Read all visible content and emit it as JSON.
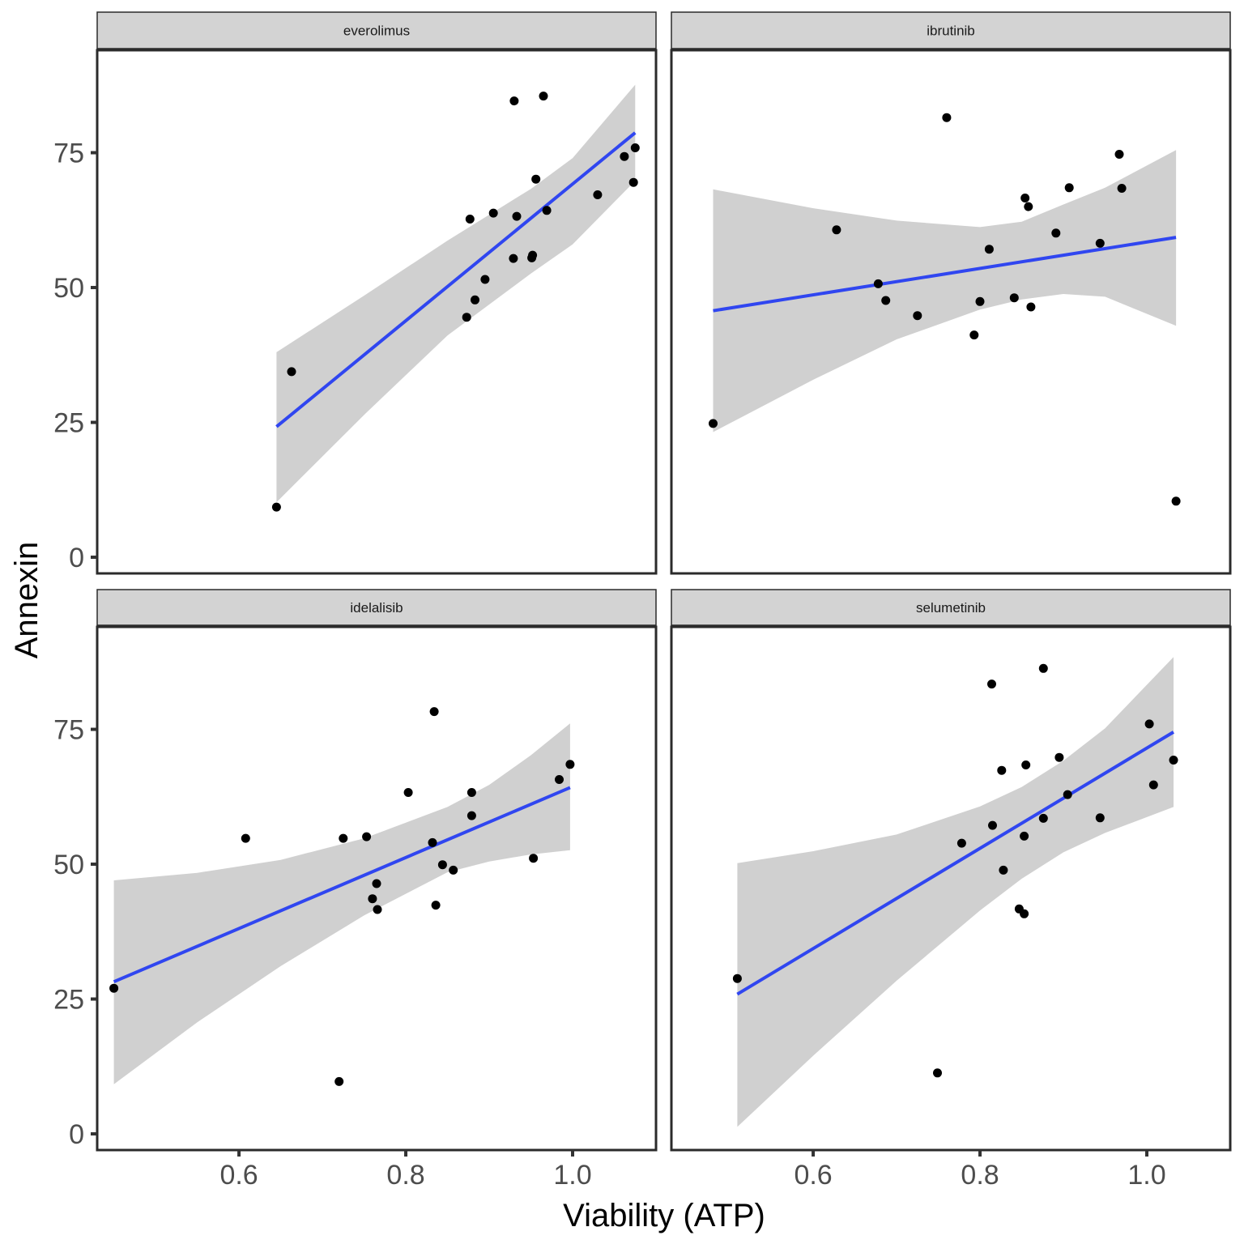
{
  "chart_data": {
    "type": "scatter",
    "facet_layout": "2x2",
    "xlabel": "Viability (ATP)",
    "ylabel": "Annexin",
    "xlim": [
      0.43,
      1.1
    ],
    "ylim": [
      -3,
      94
    ],
    "x_ticks": [
      0.6,
      0.8,
      1.0
    ],
    "x_tick_labels": [
      "0.6",
      "0.8",
      "1.0"
    ],
    "y_ticks": [
      0,
      25,
      50,
      75
    ],
    "y_tick_labels": [
      "0",
      "25",
      "50",
      "75"
    ],
    "colors": {
      "line": "#3046f0",
      "ribbon": "#d0d0d0",
      "point": "#000000",
      "strip": "#d3d3d3",
      "border": "#2b2b2b"
    },
    "panels": [
      {
        "name": "everolimus",
        "points": [
          [
            0.645,
            9.3
          ],
          [
            0.663,
            34.4
          ],
          [
            0.873,
            44.5
          ],
          [
            0.877,
            62.7
          ],
          [
            0.883,
            47.7
          ],
          [
            0.895,
            51.5
          ],
          [
            0.905,
            63.8
          ],
          [
            0.929,
            55.4
          ],
          [
            0.93,
            84.6
          ],
          [
            0.933,
            63.2
          ],
          [
            0.951,
            55.5
          ],
          [
            0.952,
            56.0
          ],
          [
            0.956,
            70.1
          ],
          [
            0.965,
            85.5
          ],
          [
            0.969,
            64.3
          ],
          [
            1.03,
            67.2
          ],
          [
            1.062,
            74.3
          ],
          [
            1.073,
            69.5
          ],
          [
            1.075,
            75.9
          ]
        ],
        "fit": {
          "x_start": 0.645,
          "x_end": 1.075,
          "y_start": 24.2,
          "y_end": 78.7
        },
        "band": {
          "x": [
            0.645,
            0.75,
            0.85,
            0.95,
            1.0,
            1.075
          ],
          "lower": [
            10.2,
            26.4,
            41.1,
            52.6,
            58.0,
            69.8
          ],
          "upper": [
            38.0,
            48.5,
            58.7,
            68.3,
            74.0,
            87.6
          ]
        }
      },
      {
        "name": "ibrutinib",
        "points": [
          [
            0.48,
            24.8
          ],
          [
            0.628,
            60.7
          ],
          [
            0.678,
            50.7
          ],
          [
            0.687,
            47.6
          ],
          [
            0.725,
            44.8
          ],
          [
            0.76,
            81.5
          ],
          [
            0.793,
            41.2
          ],
          [
            0.8,
            47.4
          ],
          [
            0.811,
            57.1
          ],
          [
            0.841,
            48.1
          ],
          [
            0.854,
            66.6
          ],
          [
            0.858,
            65.0
          ],
          [
            0.861,
            46.4
          ],
          [
            0.891,
            60.1
          ],
          [
            0.907,
            68.5
          ],
          [
            0.944,
            58.2
          ],
          [
            0.967,
            74.7
          ],
          [
            0.97,
            68.4
          ],
          [
            1.035,
            10.4
          ]
        ],
        "fit": {
          "x_start": 0.48,
          "x_end": 1.035,
          "y_start": 45.7,
          "y_end": 59.3
        },
        "band": {
          "x": [
            0.48,
            0.6,
            0.7,
            0.8,
            0.85,
            0.9,
            0.95,
            1.035
          ],
          "lower": [
            23.2,
            32.9,
            40.4,
            45.9,
            47.8,
            48.8,
            48.3,
            42.9
          ],
          "upper": [
            68.2,
            64.7,
            62.4,
            61.2,
            62.2,
            65.4,
            68.5,
            75.5
          ]
        }
      },
      {
        "name": "idelalisib",
        "points": [
          [
            0.45,
            27.0
          ],
          [
            0.608,
            54.8
          ],
          [
            0.72,
            9.7
          ],
          [
            0.725,
            54.8
          ],
          [
            0.753,
            55.1
          ],
          [
            0.76,
            43.6
          ],
          [
            0.765,
            46.4
          ],
          [
            0.766,
            41.6
          ],
          [
            0.803,
            63.3
          ],
          [
            0.832,
            54.0
          ],
          [
            0.834,
            78.3
          ],
          [
            0.836,
            42.4
          ],
          [
            0.844,
            49.9
          ],
          [
            0.857,
            48.9
          ],
          [
            0.879,
            63.3
          ],
          [
            0.879,
            59.0
          ],
          [
            0.953,
            51.1
          ],
          [
            0.984,
            65.7
          ],
          [
            0.997,
            68.5
          ]
        ],
        "fit": {
          "x_start": 0.45,
          "x_end": 0.997,
          "y_start": 28.2,
          "y_end": 64.2
        },
        "band": {
          "x": [
            0.45,
            0.55,
            0.65,
            0.75,
            0.85,
            0.9,
            0.95,
            0.997
          ],
          "lower": [
            9.2,
            20.7,
            31.1,
            40.5,
            48.5,
            50.5,
            51.8,
            52.6
          ],
          "upper": [
            47.0,
            48.4,
            50.8,
            54.8,
            60.6,
            64.7,
            70.2,
            76.1
          ]
        }
      },
      {
        "name": "selumetinib",
        "points": [
          [
            0.509,
            28.8
          ],
          [
            0.749,
            11.3
          ],
          [
            0.778,
            53.9
          ],
          [
            0.814,
            83.4
          ],
          [
            0.815,
            57.2
          ],
          [
            0.826,
            67.4
          ],
          [
            0.828,
            48.9
          ],
          [
            0.847,
            41.7
          ],
          [
            0.853,
            55.2
          ],
          [
            0.853,
            40.8
          ],
          [
            0.855,
            68.4
          ],
          [
            0.876,
            86.3
          ],
          [
            0.876,
            58.5
          ],
          [
            0.895,
            69.8
          ],
          [
            0.905,
            62.9
          ],
          [
            0.944,
            58.6
          ],
          [
            1.003,
            76.0
          ],
          [
            1.008,
            64.7
          ],
          [
            1.032,
            69.3
          ]
        ],
        "fit": {
          "x_start": 0.509,
          "x_end": 1.032,
          "y_start": 25.9,
          "y_end": 74.5
        },
        "band": {
          "x": [
            0.509,
            0.6,
            0.7,
            0.8,
            0.85,
            0.9,
            0.95,
            1.032
          ],
          "lower": [
            1.3,
            14.5,
            28.4,
            41.4,
            47.3,
            52.2,
            55.8,
            60.6
          ],
          "upper": [
            50.2,
            52.4,
            55.5,
            60.7,
            64.3,
            69.2,
            75.2,
            88.4
          ]
        }
      }
    ]
  }
}
